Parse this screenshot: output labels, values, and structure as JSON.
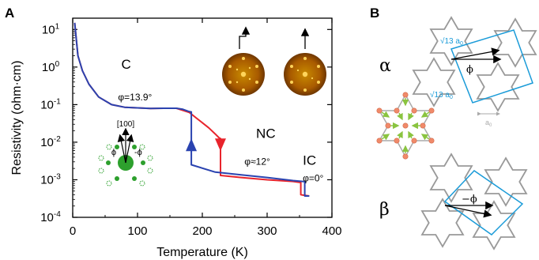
{
  "panel_a": {
    "label": "A",
    "chart_data": {
      "type": "line",
      "xlabel": "Temperature (K)",
      "ylabel": "Resistivity (ohm·cm)",
      "xlim": [
        0,
        400
      ],
      "y_scale": "log",
      "ylim": [
        0.0001,
        20
      ],
      "x_ticks": [
        "0",
        "100",
        "200",
        "300",
        "400"
      ],
      "y_ticks": [
        {
          "base": "10",
          "exp": "1",
          "value": 10
        },
        {
          "base": "10",
          "exp": "0",
          "value": 1
        },
        {
          "base": "10",
          "exp": "-1",
          "value": 0.1
        },
        {
          "base": "10",
          "exp": "-2",
          "value": 0.01
        },
        {
          "base": "10",
          "exp": "-3",
          "value": 0.001
        },
        {
          "base": "10",
          "exp": "-4",
          "value": 0.0001
        }
      ],
      "series": [
        {
          "color": "#e8242c",
          "x": [
            3,
            8,
            15,
            25,
            40,
            60,
            80,
            100,
            120,
            140,
            160,
            180,
            190,
            200,
            210,
            220,
            226,
            228,
            228,
            260,
            300,
            340,
            350,
            352,
            352,
            365
          ],
          "y": [
            15,
            2.0,
            0.8,
            0.35,
            0.16,
            0.1,
            0.085,
            0.082,
            0.079,
            0.08,
            0.08,
            0.062,
            0.045,
            0.033,
            0.024,
            0.0165,
            0.013,
            0.0125,
            0.0013,
            0.00115,
            0.001,
            0.0009,
            0.00085,
            0.00085,
            0.0004,
            0.00037
          ]
        },
        {
          "color": "#2a43b0",
          "x": [
            3,
            8,
            15,
            25,
            40,
            60,
            80,
            100,
            120,
            140,
            160,
            170,
            180,
            183,
            183,
            220,
            260,
            300,
            340,
            355,
            358,
            358,
            365
          ],
          "y": [
            15,
            2.0,
            0.8,
            0.35,
            0.16,
            0.1,
            0.085,
            0.082,
            0.079,
            0.08,
            0.08,
            0.075,
            0.065,
            0.064,
            0.0025,
            0.0016,
            0.00135,
            0.00115,
            0.00095,
            0.0009,
            0.0009,
            0.00037,
            0.00037
          ]
        }
      ],
      "arrows": [
        {
          "color": "#2a43b0",
          "direction": "up",
          "x": 183,
          "y": 0.0085
        },
        {
          "color": "#e8242c",
          "direction": "down",
          "x": 228,
          "y": 0.0085
        }
      ],
      "annotations": [
        {
          "text": "C",
          "x": 75,
          "y": 0.9
        },
        {
          "text": "φ=13.9°",
          "x": 70,
          "y": 0.13
        },
        {
          "text": "NC",
          "x": 283,
          "y": 0.013
        },
        {
          "text": "φ≈12°",
          "x": 265,
          "y": 0.0025
        },
        {
          "text": "IC",
          "x": 355,
          "y": 0.0025
        },
        {
          "text": "φ=0°",
          "x": 355,
          "y": 0.0009
        }
      ],
      "inset": {
        "direction_label": "[100]",
        "phi_left": "ϕ",
        "phi_right": "-ϕ"
      },
      "colors": {
        "diffraction": "#2da02d",
        "pattern_bg": "#c07000"
      }
    }
  },
  "panel_b": {
    "label": "B",
    "alpha": "α",
    "beta": "β",
    "phi": "ϕ",
    "minus_phi": "−ϕ",
    "sqrt13_top": "√13 a",
    "sqrt13_bottom": "√13 a",
    "a0": "a",
    "a0_sub": "0",
    "sub0": "0",
    "colors": {
      "star": "#999999",
      "cell": "#1a9bd8",
      "atom": "#f08a6a",
      "arrow": "#8ac440"
    }
  }
}
